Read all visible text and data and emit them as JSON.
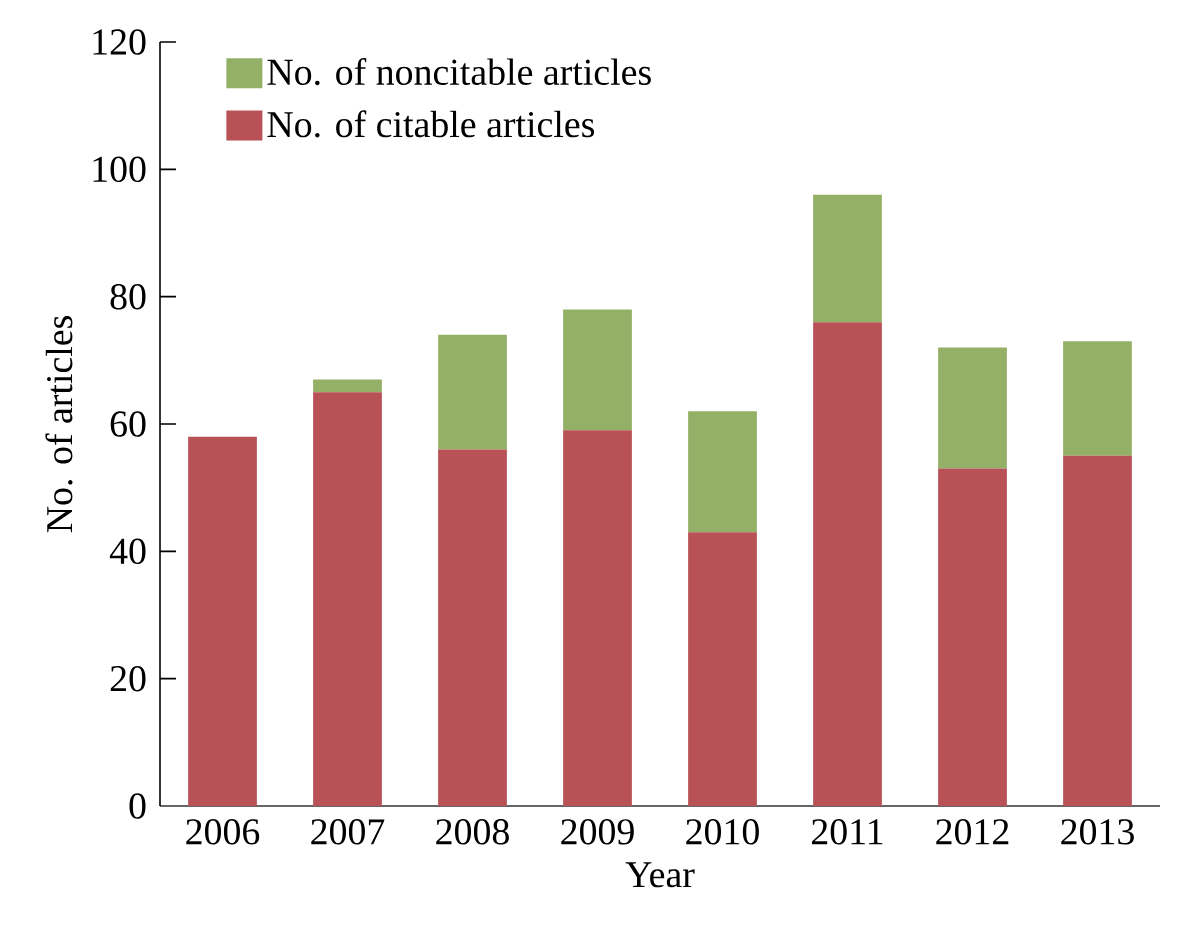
{
  "chart_data": {
    "type": "bar",
    "stacked": true,
    "xlabel": "Year",
    "ylabel": "No. of articles",
    "categories": [
      "2006",
      "2007",
      "2008",
      "2009",
      "2010",
      "2011",
      "2012",
      "2013"
    ],
    "series": [
      {
        "name": "No. of citable articles",
        "color": "#b85256",
        "values": [
          58,
          65,
          56,
          59,
          43,
          76,
          53,
          55
        ]
      },
      {
        "name": "No. of noncitable articles",
        "color": "#93b066",
        "values": [
          0,
          2,
          18,
          19,
          19,
          20,
          19,
          18
        ]
      }
    ],
    "ylim": [
      0,
      120
    ],
    "yticks": [
      0,
      20,
      40,
      60,
      80,
      100,
      120
    ],
    "grid": false,
    "legend": "top left"
  }
}
